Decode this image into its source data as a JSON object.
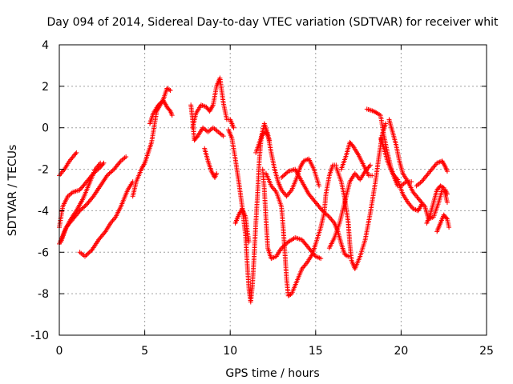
{
  "chart_data": {
    "type": "scatter",
    "title": "Day 094 of 2014, Sidereal Day-to-day VTEC variation (SDTVAR) for receiver whit",
    "xlabel": "GPS time / hours",
    "ylabel": "SDTVAR / TECUs",
    "xlim": [
      0,
      25
    ],
    "ylim": [
      -10,
      4
    ],
    "xticks": [
      0,
      5,
      10,
      15,
      20,
      25
    ],
    "yticks": [
      -10,
      -8,
      -6,
      -4,
      -2,
      0,
      2,
      4
    ],
    "grid": true,
    "marker": "+",
    "series_color": "#ff0000",
    "series": [
      {
        "name": "SDTVAR",
        "tracks": [
          [
            [
              0.0,
              -2.3
            ],
            [
              0.3,
              -2.0
            ],
            [
              0.6,
              -1.6
            ],
            [
              0.9,
              -1.3
            ],
            [
              1.0,
              -1.2
            ]
          ],
          [
            [
              0.0,
              -4.8
            ],
            [
              0.2,
              -3.8
            ],
            [
              0.5,
              -3.3
            ],
            [
              0.8,
              -3.1
            ],
            [
              1.2,
              -3.0
            ],
            [
              1.6,
              -2.6
            ],
            [
              2.0,
              -2.2
            ],
            [
              2.4,
              -1.9
            ],
            [
              2.6,
              -1.7
            ]
          ],
          [
            [
              0.0,
              -5.6
            ],
            [
              0.3,
              -5.0
            ],
            [
              0.6,
              -4.5
            ],
            [
              1.0,
              -4.0
            ],
            [
              1.4,
              -3.4
            ],
            [
              1.8,
              -2.6
            ],
            [
              2.1,
              -2.0
            ],
            [
              2.4,
              -1.7
            ]
          ],
          [
            [
              0.1,
              -5.5
            ],
            [
              0.4,
              -4.8
            ],
            [
              0.8,
              -4.4
            ],
            [
              1.2,
              -4.0
            ],
            [
              1.6,
              -3.7
            ],
            [
              2.0,
              -3.3
            ],
            [
              2.4,
              -2.8
            ],
            [
              2.8,
              -2.3
            ],
            [
              3.2,
              -2.0
            ],
            [
              3.6,
              -1.6
            ],
            [
              3.9,
              -1.4
            ]
          ],
          [
            [
              1.2,
              -6.0
            ],
            [
              1.5,
              -6.2
            ],
            [
              1.9,
              -5.9
            ],
            [
              2.3,
              -5.4
            ],
            [
              2.7,
              -5.0
            ],
            [
              3.0,
              -4.6
            ],
            [
              3.3,
              -4.3
            ],
            [
              3.6,
              -3.8
            ],
            [
              4.0,
              -3.0
            ],
            [
              4.3,
              -2.6
            ]
          ],
          [
            [
              4.3,
              -3.3
            ],
            [
              4.5,
              -2.6
            ],
            [
              4.8,
              -2.0
            ],
            [
              5.0,
              -1.7
            ],
            [
              5.2,
              -1.2
            ],
            [
              5.4,
              -0.7
            ],
            [
              5.5,
              -0.2
            ],
            [
              5.6,
              0.3
            ],
            [
              5.7,
              0.8
            ],
            [
              5.9,
              1.1
            ],
            [
              6.1,
              1.4
            ],
            [
              6.3,
              1.9
            ],
            [
              6.5,
              1.8
            ]
          ],
          [
            [
              5.3,
              0.2
            ],
            [
              5.5,
              0.7
            ],
            [
              5.8,
              1.1
            ],
            [
              6.1,
              1.3
            ],
            [
              6.3,
              1.0
            ],
            [
              6.5,
              0.8
            ],
            [
              6.6,
              0.6
            ]
          ],
          [
            [
              7.7,
              1.1
            ],
            [
              7.8,
              0.4
            ],
            [
              7.9,
              -0.6
            ],
            [
              8.1,
              -0.4
            ],
            [
              8.4,
              0.0
            ],
            [
              8.7,
              -0.2
            ],
            [
              9.0,
              0.0
            ],
            [
              9.3,
              -0.2
            ],
            [
              9.6,
              -0.4
            ]
          ],
          [
            [
              7.8,
              0.0
            ],
            [
              8.0,
              0.7
            ],
            [
              8.3,
              1.1
            ],
            [
              8.6,
              1.0
            ],
            [
              8.8,
              0.8
            ],
            [
              9.0,
              1.1
            ],
            [
              9.2,
              2.0
            ],
            [
              9.4,
              2.4
            ],
            [
              9.6,
              1.2
            ],
            [
              9.8,
              0.4
            ],
            [
              10.0,
              0.4
            ],
            [
              10.2,
              0.0
            ]
          ],
          [
            [
              8.5,
              -1.0
            ],
            [
              8.7,
              -1.6
            ],
            [
              8.9,
              -2.1
            ],
            [
              9.1,
              -2.4
            ],
            [
              9.2,
              -2.2
            ]
          ],
          [
            [
              9.9,
              -0.1
            ],
            [
              10.1,
              -0.5
            ],
            [
              10.3,
              -1.5
            ],
            [
              10.5,
              -2.6
            ],
            [
              10.7,
              -3.8
            ],
            [
              10.9,
              -5.2
            ],
            [
              11.0,
              -6.6
            ],
            [
              11.1,
              -7.8
            ],
            [
              11.2,
              -8.4
            ],
            [
              11.3,
              -7.6
            ],
            [
              11.4,
              -6.2
            ],
            [
              11.5,
              -4.6
            ],
            [
              11.6,
              -3.2
            ],
            [
              11.7,
              -1.6
            ],
            [
              11.8,
              -0.6
            ],
            [
              11.9,
              -0.3
            ],
            [
              12.1,
              -0.2
            ],
            [
              12.3,
              -0.6
            ]
          ],
          [
            [
              10.3,
              -4.6
            ],
            [
              10.5,
              -4.2
            ],
            [
              10.7,
              -3.9
            ],
            [
              10.9,
              -4.3
            ],
            [
              11.0,
              -5.0
            ],
            [
              11.1,
              -5.5
            ]
          ],
          [
            [
              11.5,
              -1.2
            ],
            [
              11.8,
              -0.5
            ],
            [
              12.0,
              0.2
            ],
            [
              12.2,
              -0.3
            ],
            [
              12.4,
              -1.2
            ],
            [
              12.6,
              -2.0
            ],
            [
              12.8,
              -2.6
            ],
            [
              13.0,
              -3.0
            ],
            [
              13.3,
              -3.3
            ],
            [
              13.6,
              -3.0
            ],
            [
              13.9,
              -2.4
            ],
            [
              14.1,
              -1.9
            ],
            [
              14.3,
              -1.6
            ],
            [
              14.6,
              -1.5
            ],
            [
              14.9,
              -2.0
            ],
            [
              15.2,
              -2.8
            ]
          ],
          [
            [
              11.9,
              -2.0
            ],
            [
              12.0,
              -3.0
            ],
            [
              12.1,
              -4.5
            ],
            [
              12.2,
              -5.8
            ],
            [
              12.4,
              -6.3
            ],
            [
              12.7,
              -6.2
            ],
            [
              13.0,
              -5.8
            ],
            [
              13.4,
              -5.5
            ],
            [
              13.8,
              -5.3
            ],
            [
              14.2,
              -5.4
            ],
            [
              14.6,
              -5.8
            ],
            [
              15.0,
              -6.2
            ],
            [
              15.3,
              -6.3
            ]
          ],
          [
            [
              12.1,
              -2.2
            ],
            [
              12.4,
              -2.8
            ],
            [
              12.7,
              -3.1
            ],
            [
              13.0,
              -3.8
            ],
            [
              13.1,
              -4.8
            ],
            [
              13.2,
              -6.0
            ],
            [
              13.3,
              -7.3
            ],
            [
              13.4,
              -8.1
            ],
            [
              13.6,
              -8.0
            ],
            [
              13.9,
              -7.4
            ],
            [
              14.2,
              -6.8
            ],
            [
              14.5,
              -6.5
            ],
            [
              14.8,
              -6.1
            ],
            [
              15.0,
              -5.6
            ],
            [
              15.3,
              -4.8
            ],
            [
              15.5,
              -4.1
            ],
            [
              15.6,
              -3.2
            ],
            [
              15.8,
              -2.3
            ],
            [
              16.0,
              -1.8
            ],
            [
              16.2,
              -1.8
            ]
          ],
          [
            [
              13.0,
              -2.4
            ],
            [
              13.4,
              -2.1
            ],
            [
              13.8,
              -2.0
            ],
            [
              14.2,
              -2.6
            ],
            [
              14.6,
              -3.2
            ],
            [
              15.0,
              -3.6
            ],
            [
              15.4,
              -4.0
            ],
            [
              15.8,
              -4.3
            ],
            [
              16.1,
              -4.6
            ],
            [
              16.3,
              -5.0
            ],
            [
              16.5,
              -5.6
            ],
            [
              16.7,
              -6.1
            ],
            [
              16.9,
              -6.2
            ]
          ],
          [
            [
              15.8,
              -5.8
            ],
            [
              16.1,
              -5.3
            ],
            [
              16.4,
              -4.6
            ],
            [
              16.7,
              -3.6
            ],
            [
              17.0,
              -2.6
            ],
            [
              17.3,
              -2.2
            ],
            [
              17.6,
              -2.5
            ],
            [
              17.9,
              -2.1
            ],
            [
              18.2,
              -1.8
            ]
          ],
          [
            [
              16.2,
              -1.9
            ],
            [
              16.5,
              -2.6
            ],
            [
              16.7,
              -3.4
            ],
            [
              16.9,
              -4.5
            ],
            [
              17.0,
              -5.6
            ],
            [
              17.1,
              -6.4
            ],
            [
              17.3,
              -6.8
            ],
            [
              17.6,
              -6.2
            ],
            [
              17.9,
              -5.4
            ],
            [
              18.2,
              -4.1
            ],
            [
              18.5,
              -2.6
            ],
            [
              18.7,
              -1.4
            ],
            [
              18.9,
              -0.3
            ],
            [
              19.1,
              0.2
            ]
          ],
          [
            [
              16.5,
              -2.0
            ],
            [
              16.8,
              -1.3
            ],
            [
              17.0,
              -0.7
            ],
            [
              17.2,
              -0.9
            ],
            [
              17.5,
              -1.3
            ],
            [
              17.8,
              -1.8
            ],
            [
              18.1,
              -2.3
            ],
            [
              18.3,
              -2.3
            ]
          ],
          [
            [
              18.0,
              0.9
            ],
            [
              18.4,
              0.8
            ],
            [
              18.8,
              0.6
            ],
            [
              19.0,
              -0.4
            ],
            [
              19.2,
              -1.2
            ],
            [
              19.4,
              -1.9
            ],
            [
              19.6,
              -2.4
            ],
            [
              19.8,
              -2.8
            ],
            [
              20.0,
              -2.8
            ],
            [
              20.3,
              -2.6
            ],
            [
              20.6,
              -2.6
            ]
          ],
          [
            [
              18.8,
              -0.5
            ],
            [
              19.0,
              -1.0
            ],
            [
              19.2,
              -1.6
            ],
            [
              19.5,
              -2.2
            ],
            [
              19.8,
              -2.5
            ],
            [
              20.1,
              -3.2
            ],
            [
              20.4,
              -3.6
            ],
            [
              20.7,
              -3.9
            ],
            [
              21.0,
              -4.0
            ],
            [
              21.2,
              -3.7
            ]
          ],
          [
            [
              19.3,
              0.4
            ],
            [
              19.5,
              -0.2
            ],
            [
              19.7,
              -0.8
            ],
            [
              19.9,
              -1.6
            ],
            [
              20.1,
              -2.2
            ],
            [
              20.4,
              -2.6
            ],
            [
              20.7,
              -3.1
            ],
            [
              21.0,
              -3.4
            ],
            [
              21.4,
              -3.8
            ],
            [
              21.6,
              -4.4
            ],
            [
              21.9,
              -4.3
            ],
            [
              22.2,
              -3.6
            ],
            [
              22.4,
              -3.0
            ],
            [
              22.6,
              -3.0
            ],
            [
              22.7,
              -3.2
            ]
          ],
          [
            [
              20.9,
              -2.8
            ],
            [
              21.2,
              -2.6
            ],
            [
              21.5,
              -2.3
            ],
            [
              21.8,
              -2.0
            ],
            [
              22.1,
              -1.7
            ],
            [
              22.4,
              -1.6
            ],
            [
              22.6,
              -1.9
            ],
            [
              22.7,
              -2.1
            ]
          ],
          [
            [
              21.5,
              -4.6
            ],
            [
              21.7,
              -4.2
            ],
            [
              21.9,
              -3.6
            ],
            [
              22.1,
              -3.0
            ],
            [
              22.3,
              -2.8
            ],
            [
              22.5,
              -2.9
            ],
            [
              22.7,
              -3.6
            ]
          ],
          [
            [
              22.1,
              -5.0
            ],
            [
              22.3,
              -4.6
            ],
            [
              22.5,
              -4.2
            ],
            [
              22.7,
              -4.4
            ],
            [
              22.8,
              -4.8
            ]
          ]
        ]
      }
    ]
  }
}
